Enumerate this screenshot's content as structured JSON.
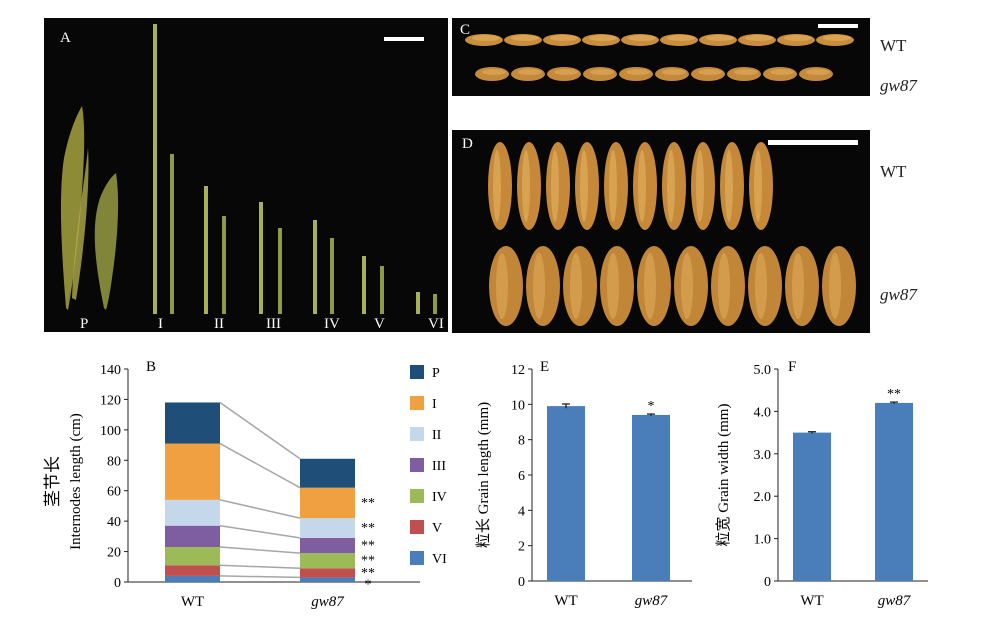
{
  "panels": {
    "A": {
      "label": "A",
      "internode_labels": [
        "P",
        "I",
        "II",
        "III",
        "IV",
        "V",
        "VI"
      ]
    },
    "C": {
      "label": "C",
      "row_labels": [
        "WT",
        "gw87"
      ]
    },
    "D": {
      "label": "D",
      "row_labels": [
        "WT",
        "gw87"
      ]
    }
  },
  "colors": {
    "P": "#1f4e79",
    "I": "#f0a040",
    "II": "#c5d7ea",
    "III": "#7e5da0",
    "IV": "#9cbb58",
    "V": "#c0504d",
    "VI": "#4a7ebb",
    "bar": "#4a7ebb",
    "connector": "#a6a6a6"
  },
  "chart_data": [
    {
      "panel": "B",
      "type": "bar",
      "stacked": true,
      "categories": [
        "WT",
        "gw87"
      ],
      "ylabel_cn": "茎节长",
      "ylabel": "Internodes length (cm)",
      "ylim": [
        0,
        140
      ],
      "yticks": [
        0,
        20,
        40,
        60,
        80,
        100,
        120,
        140
      ],
      "series": [
        {
          "name": "VI",
          "values": [
            4,
            3
          ]
        },
        {
          "name": "V",
          "values": [
            7,
            6
          ]
        },
        {
          "name": "IV",
          "values": [
            12,
            10
          ]
        },
        {
          "name": "III",
          "values": [
            14,
            10
          ]
        },
        {
          "name": "II",
          "values": [
            17,
            13
          ]
        },
        {
          "name": "I",
          "values": [
            37,
            20
          ]
        },
        {
          "name": "P",
          "values": [
            27,
            19
          ]
        }
      ],
      "significance": [
        "*",
        "**",
        "**",
        "**",
        "**",
        "**",
        ""
      ],
      "legend": [
        "P",
        "I",
        "II",
        "III",
        "IV",
        "V",
        "VI"
      ],
      "legend_position": "right"
    },
    {
      "panel": "E",
      "type": "bar",
      "categories": [
        "WT",
        "gw87"
      ],
      "values": [
        9.9,
        9.4
      ],
      "errors": [
        0.12,
        0.05
      ],
      "significance": [
        "",
        "*"
      ],
      "ylabel_cn": "粒长",
      "ylabel": "Grain length (mm)",
      "ylim": [
        0,
        12
      ],
      "yticks": [
        0,
        2,
        4,
        6,
        8,
        10,
        12
      ]
    },
    {
      "panel": "F",
      "type": "bar",
      "categories": [
        "WT",
        "gw87"
      ],
      "values": [
        3.5,
        4.2
      ],
      "errors": [
        0.02,
        0.02
      ],
      "significance": [
        "",
        "**"
      ],
      "ylabel_cn": "粒宽",
      "ylabel": "Grain width (mm)",
      "ylim": [
        0,
        5
      ],
      "yticks": [
        "0",
        "1.0",
        "2.0",
        "3.0",
        "4.0",
        "5.0"
      ]
    }
  ]
}
